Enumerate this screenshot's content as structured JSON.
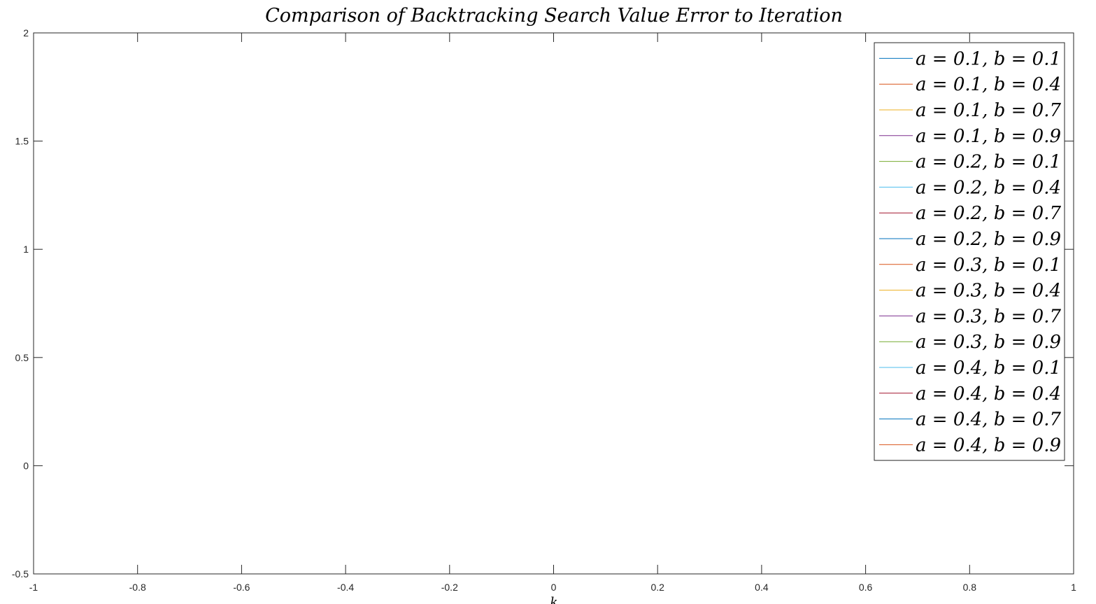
{
  "chart_data": {
    "type": "line",
    "title": "Comparison of Backtracking Search Value Error to Iteration",
    "xlabel": "k",
    "ylabel": "",
    "xlim": [
      -1,
      1
    ],
    "ylim": [
      -0.5,
      2
    ],
    "xticks": [
      -1,
      -0.8,
      -0.6,
      -0.4,
      -0.2,
      0,
      0.2,
      0.4,
      0.6,
      0.8,
      1
    ],
    "xtick_labels": [
      "-1",
      "-0.8",
      "-0.6",
      "-0.4",
      "-0.2",
      "0",
      "0.2",
      "0.4",
      "0.6",
      "0.8",
      "1"
    ],
    "yticks": [
      -0.5,
      0,
      0.5,
      1,
      1.5,
      2
    ],
    "ytick_labels": [
      "-0.5",
      "0",
      "0.5",
      "1",
      "1.5",
      "2"
    ],
    "grid": false,
    "legend_position": "top-right",
    "series": [
      {
        "name": "a = 0.1,  b = 0.1",
        "color": "#0072BD",
        "x": [],
        "y": []
      },
      {
        "name": "a = 0.1,  b = 0.4",
        "color": "#D95319",
        "x": [],
        "y": []
      },
      {
        "name": "a = 0.1, b = 0.7",
        "color": "#EDB120",
        "x": [],
        "y": []
      },
      {
        "name": "a = 0.1, b = 0.9",
        "color": "#7E2F8E",
        "x": [],
        "y": []
      },
      {
        "name": "a = 0.2, b = 0.1",
        "color": "#77AC30",
        "x": [],
        "y": []
      },
      {
        "name": "a = 0.2, b = 0.4",
        "color": "#4DBEEE",
        "x": [],
        "y": []
      },
      {
        "name": "a = 0.2, b = 0.7",
        "color": "#A2142F",
        "x": [],
        "y": []
      },
      {
        "name": "a = 0.2, b = 0.9",
        "color": "#0072BD",
        "x": [],
        "y": []
      },
      {
        "name": "a = 0.3, b = 0.1",
        "color": "#D95319",
        "x": [],
        "y": []
      },
      {
        "name": "a = 0.3, b = 0.4",
        "color": "#EDB120",
        "x": [],
        "y": []
      },
      {
        "name": "a = 0.3, b = 0.7",
        "color": "#7E2F8E",
        "x": [],
        "y": []
      },
      {
        "name": "a = 0.3, b = 0.9",
        "color": "#77AC30",
        "x": [],
        "y": []
      },
      {
        "name": "a = 0.4, b = 0.1",
        "color": "#4DBEEE",
        "x": [],
        "y": []
      },
      {
        "name": "a = 0.4, b = 0.4",
        "color": "#A2142F",
        "x": [],
        "y": []
      },
      {
        "name": "a = 0.4, b = 0.7",
        "color": "#0072BD",
        "x": [],
        "y": []
      },
      {
        "name": "a = 0.4, b = 0.9",
        "color": "#D95319",
        "x": [],
        "y": []
      }
    ]
  }
}
